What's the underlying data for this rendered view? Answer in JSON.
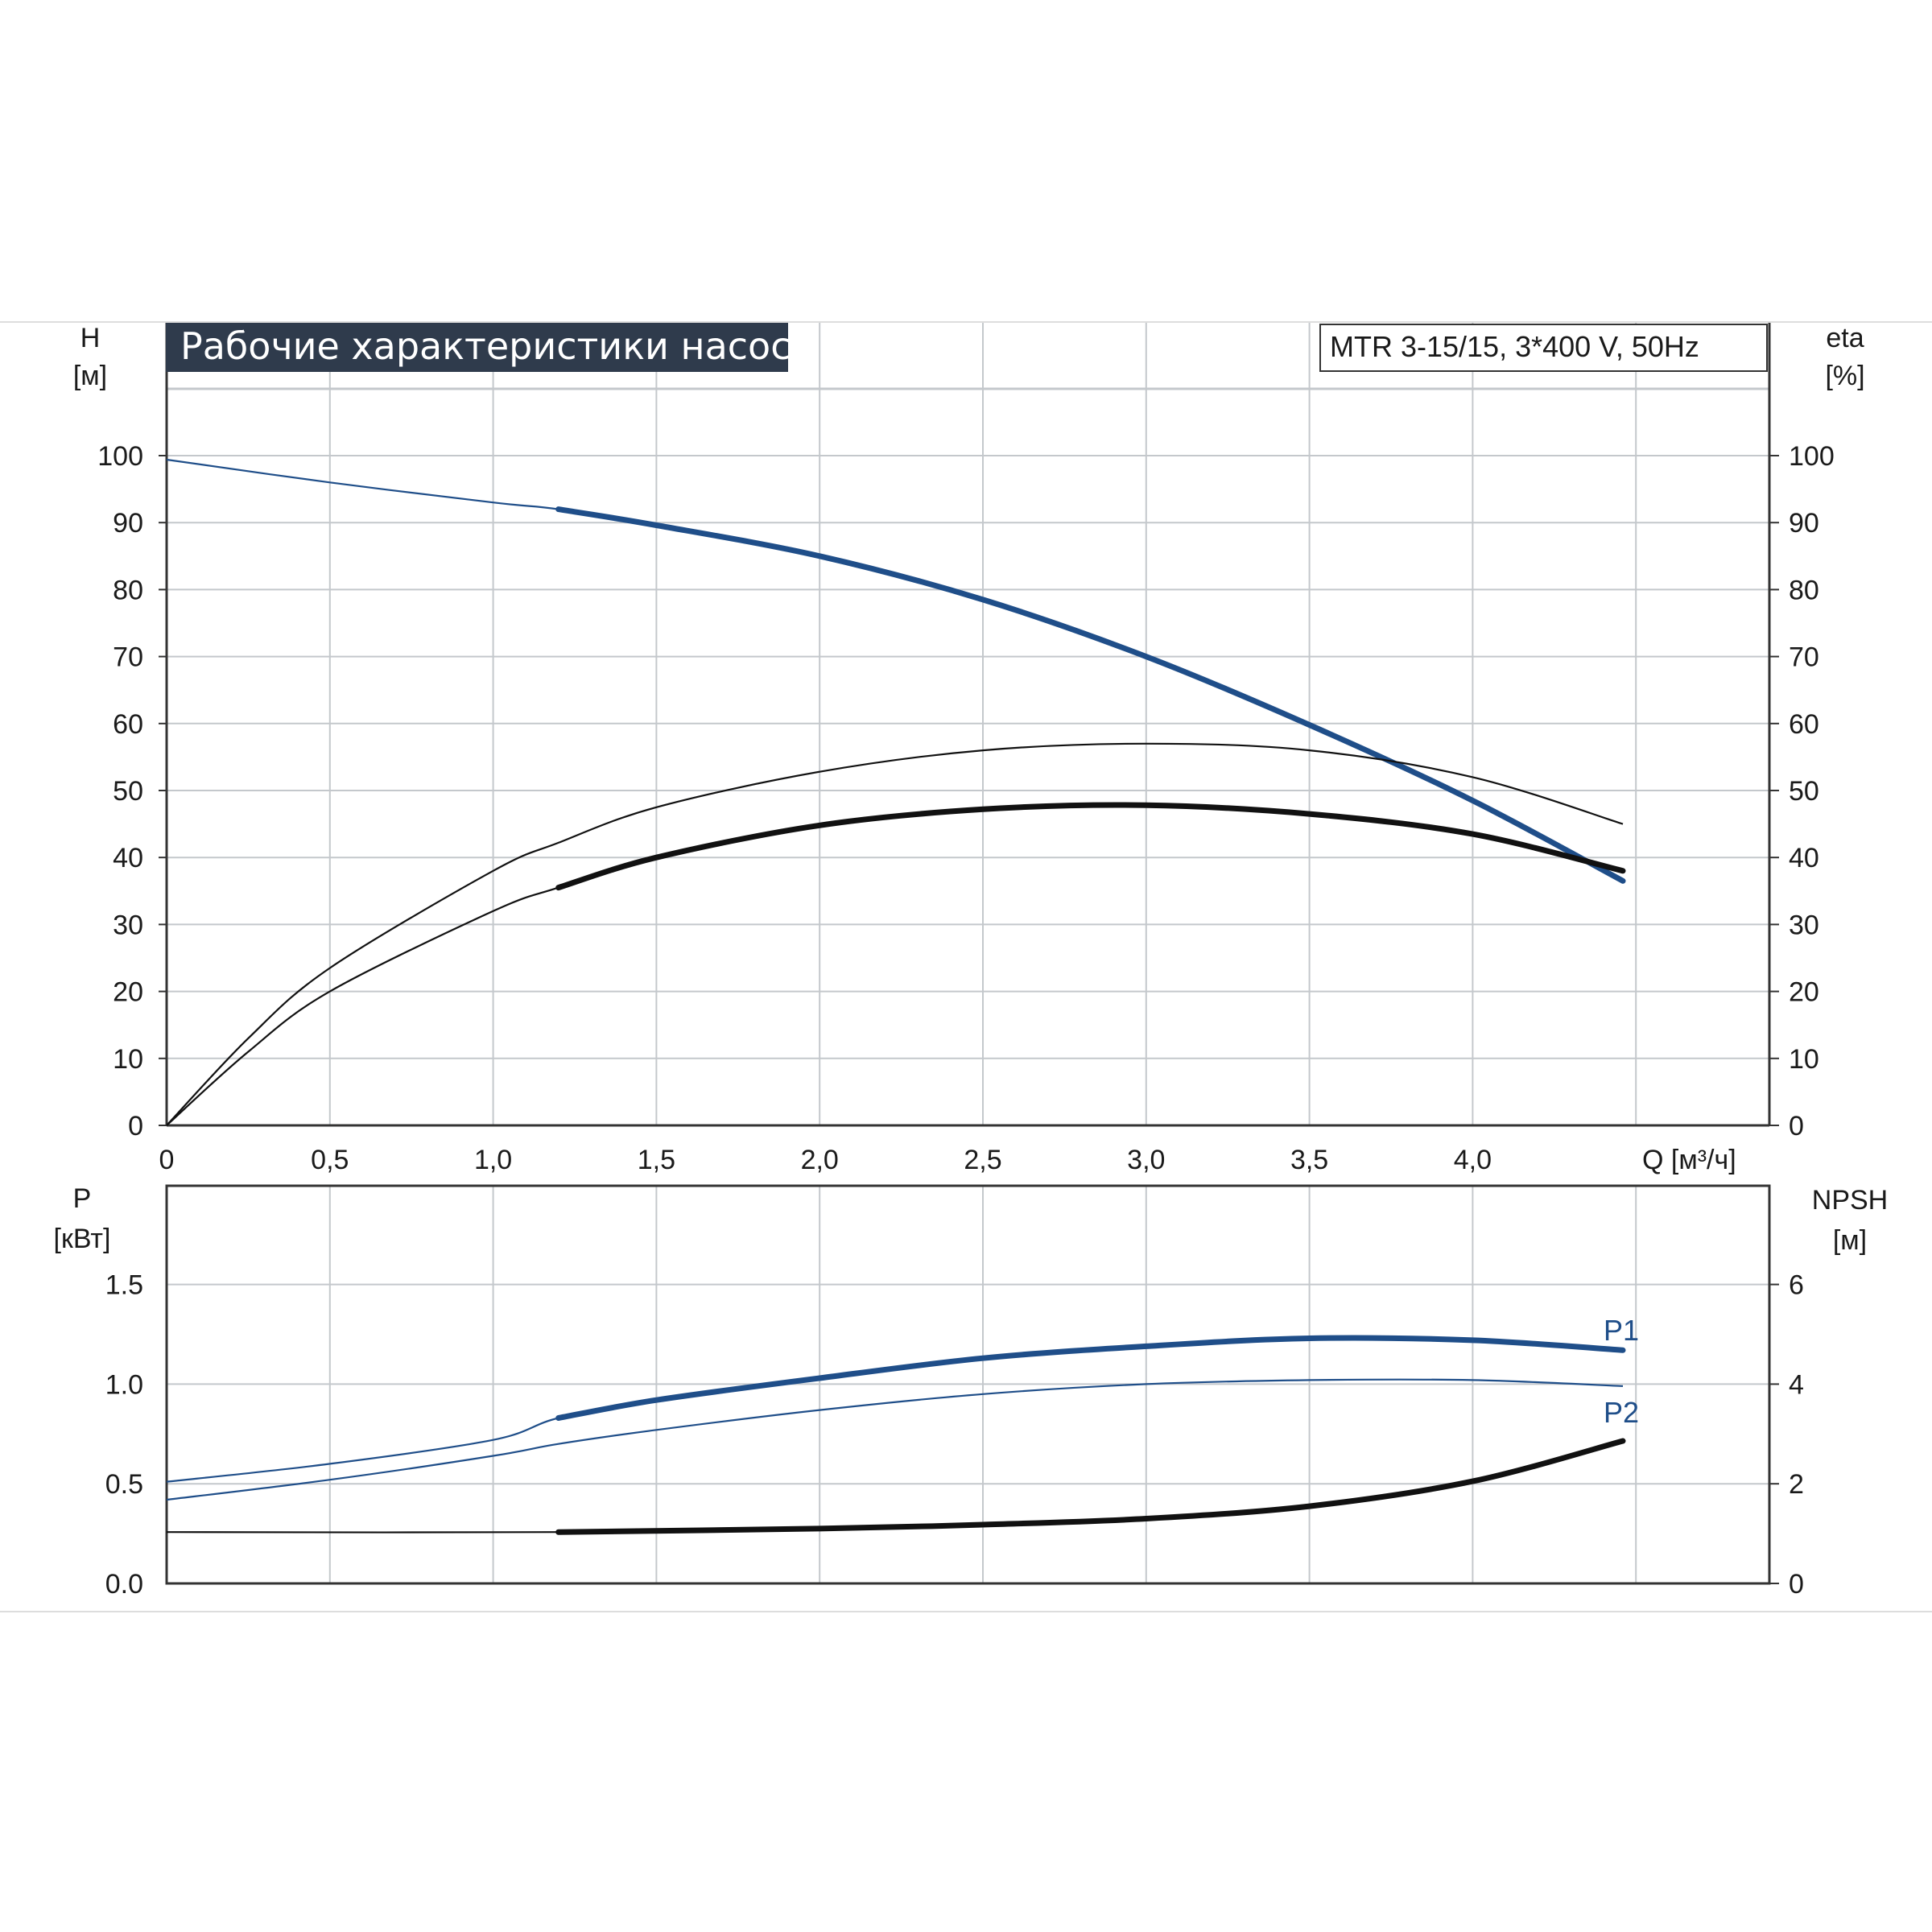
{
  "colors": {
    "blue": "#1f4e89",
    "black": "#111111",
    "grid": "#c4c8cc",
    "title_bg": "#2f3b4c",
    "title_fg": "#ffffff"
  },
  "chart_data": [
    {
      "type": "line",
      "title": "Рабочие характеристики насоса",
      "model_label": "MTR 3-15/15, 3*400 V, 50Hz",
      "xlabel": "Q [м³/ч]",
      "ylabel": {
        "name": "H",
        "unit": "[м]"
      },
      "ylabel_right": {
        "name": "eta",
        "unit": "[%]"
      },
      "xlim": [
        0,
        4.9
      ],
      "ylim": [
        0,
        100
      ],
      "ylim_right": [
        0,
        100
      ],
      "x_ticks": [
        "0",
        "0,5",
        "1,0",
        "1,5",
        "2,0",
        "2,5",
        "3,0",
        "3,5",
        "4,0"
      ],
      "y_ticks": [
        "0",
        "10",
        "20",
        "30",
        "40",
        "50",
        "60",
        "70",
        "80",
        "90",
        "100"
      ],
      "y_ticks_right": [
        "0",
        "10",
        "20",
        "30",
        "40",
        "50",
        "60",
        "70",
        "80",
        "90",
        "100"
      ],
      "grid": true,
      "series": [
        {
          "axis": "left",
          "color": "blue",
          "x": [
            0,
            0.5,
            1.0,
            1.2,
            1.5,
            2.0,
            2.5,
            3.0,
            3.5,
            4.0,
            4.46
          ],
          "y": [
            99.4,
            96.0,
            93.0,
            92.0,
            89.6,
            85.0,
            78.5,
            70.0,
            59.8,
            48.5,
            36.5
          ],
          "bold_from": 1.2
        },
        {
          "axis": "right",
          "color": "black",
          "x": [
            0,
            0.25,
            0.5,
            1.0,
            1.2,
            1.5,
            2.0,
            2.5,
            3.0,
            3.5,
            4.0,
            4.46
          ],
          "y": [
            0,
            13.0,
            23.5,
            38.0,
            42.2,
            47.5,
            52.8,
            56.0,
            57.0,
            56.0,
            52.0,
            45.0
          ]
        },
        {
          "axis": "right",
          "color": "black",
          "x": [
            0,
            0.25,
            0.5,
            1.0,
            1.2,
            1.5,
            2.0,
            2.5,
            3.0,
            3.5,
            4.0,
            4.46
          ],
          "y": [
            0,
            11.0,
            20.0,
            32.0,
            35.5,
            40.0,
            44.8,
            47.2,
            47.8,
            46.5,
            43.5,
            38.0
          ],
          "bold_from": 1.2
        }
      ]
    },
    {
      "type": "line",
      "xlabel": "",
      "ylabel": {
        "name": "P",
        "unit": "[кВт]"
      },
      "ylabel_right": {
        "name": "NPSH",
        "unit": "[м]"
      },
      "xlim": [
        0,
        4.9
      ],
      "ylim": [
        0,
        2.0
      ],
      "ylim_right": [
        0,
        8
      ],
      "y_ticks": [
        "0.0",
        "0.5",
        "1.0",
        "1.5"
      ],
      "y_ticks_right": [
        "0",
        "2",
        "4",
        "6"
      ],
      "grid": true,
      "series": [
        {
          "name": "P1",
          "axis": "left",
          "color": "blue",
          "x": [
            0,
            0.5,
            1.0,
            1.2,
            1.5,
            2.0,
            2.5,
            3.0,
            3.5,
            4.0,
            4.46
          ],
          "y": [
            0.51,
            0.6,
            0.72,
            0.83,
            0.92,
            1.03,
            1.13,
            1.19,
            1.23,
            1.22,
            1.17
          ],
          "bold_from": 1.2
        },
        {
          "name": "P2",
          "axis": "left",
          "color": "blue",
          "x": [
            0,
            0.5,
            1.0,
            1.2,
            1.5,
            2.0,
            2.5,
            3.0,
            3.5,
            4.0,
            4.46
          ],
          "y": [
            0.42,
            0.52,
            0.64,
            0.7,
            0.77,
            0.87,
            0.95,
            1.0,
            1.02,
            1.02,
            0.99
          ]
        },
        {
          "axis": "right",
          "color": "black",
          "x": [
            0,
            1.2,
            2.0,
            2.5,
            3.0,
            3.5,
            4.0,
            4.46
          ],
          "y": [
            1.03,
            1.03,
            1.1,
            1.18,
            1.3,
            1.55,
            2.05,
            2.86
          ],
          "bold_from": 1.2
        }
      ],
      "series_labels": [
        "P1",
        "P2"
      ]
    }
  ]
}
